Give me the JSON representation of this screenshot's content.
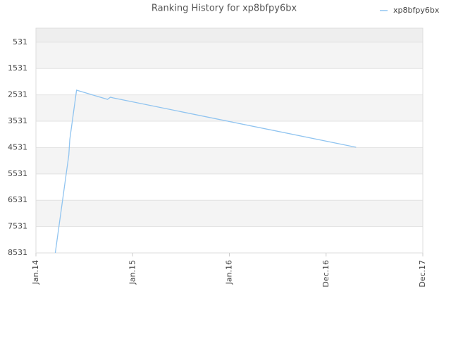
{
  "chart_data": {
    "type": "line",
    "title": "Ranking History for xp8bfpy6bx",
    "x": [
      2014.2,
      2014.34,
      2014.35,
      2014.42,
      2014.74,
      2014.77,
      2014.8,
      2017.31
    ],
    "series": [
      {
        "name": "xp8bfpy6bx",
        "color": "#90c4f0",
        "values": [
          8531,
          4813,
          4225,
          2353,
          2701,
          2620,
          2647,
          4519
        ]
      }
    ],
    "xlim": [
      2014,
      2018
    ],
    "xticks": [
      {
        "value": 2014,
        "label": "Jan.14"
      },
      {
        "value": 2015,
        "label": "Jan.15"
      },
      {
        "value": 2016,
        "label": "Jan.16"
      },
      {
        "value": 2017,
        "label": "Dec.16"
      },
      {
        "value": 2018,
        "label": "Dec.17"
      }
    ],
    "ylim": [
      8531,
      0
    ],
    "yticks": [
      531,
      1531,
      2531,
      3531,
      4531,
      5531,
      6531,
      7531,
      8531
    ],
    "grid": true,
    "legend": "top-right"
  }
}
